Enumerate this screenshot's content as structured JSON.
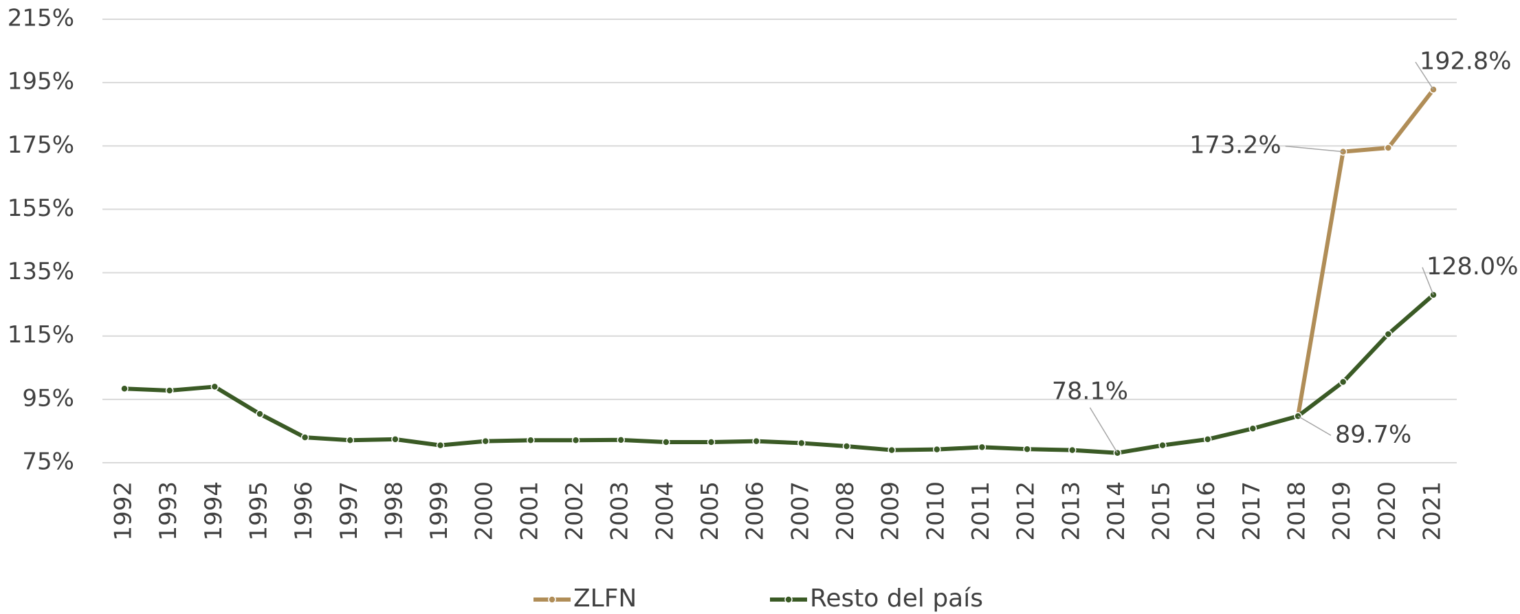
{
  "chart_data": {
    "type": "line",
    "categories": [
      "1992",
      "1993",
      "1994",
      "1995",
      "1996",
      "1997",
      "1998",
      "1999",
      "2000",
      "2001",
      "2002",
      "2003",
      "2004",
      "2005",
      "2006",
      "2007",
      "2008",
      "2009",
      "2010",
      "2011",
      "2012",
      "2013",
      "2014",
      "2015",
      "2016",
      "2017",
      "2018",
      "2019",
      "2020",
      "2021"
    ],
    "series": [
      {
        "name": "ZLFN",
        "color": "#b08d57",
        "values": [
          null,
          null,
          null,
          null,
          null,
          null,
          null,
          null,
          null,
          null,
          null,
          null,
          null,
          null,
          null,
          null,
          null,
          null,
          null,
          null,
          null,
          null,
          null,
          null,
          null,
          null,
          89.7,
          173.2,
          174.4,
          192.8
        ],
        "value_labels": [
          null,
          null,
          null,
          null,
          null,
          null,
          null,
          null,
          null,
          null,
          null,
          null,
          null,
          null,
          null,
          null,
          null,
          null,
          null,
          null,
          null,
          null,
          null,
          null,
          null,
          null,
          null,
          "173.2%",
          null,
          "192.8%"
        ]
      },
      {
        "name": "Resto del país",
        "color": "#3a5a25",
        "values": [
          98.4,
          97.8,
          99.0,
          90.4,
          83.0,
          82.1,
          82.4,
          80.5,
          81.8,
          82.1,
          82.1,
          82.2,
          81.5,
          81.5,
          81.8,
          81.2,
          80.2,
          79.0,
          79.2,
          79.9,
          79.3,
          79.0,
          78.1,
          80.5,
          82.4,
          85.8,
          89.7,
          100.5,
          115.6,
          128.0
        ],
        "value_labels": [
          null,
          null,
          null,
          null,
          null,
          null,
          null,
          null,
          null,
          null,
          null,
          null,
          null,
          null,
          null,
          null,
          null,
          null,
          null,
          null,
          null,
          null,
          "78.1%",
          null,
          null,
          null,
          "89.7%",
          null,
          null,
          "128.0%"
        ]
      }
    ],
    "ylim": [
      75,
      215
    ],
    "yticks": [
      {
        "value": 75,
        "label": "75%"
      },
      {
        "value": 95,
        "label": "95%"
      },
      {
        "value": 115,
        "label": "115%"
      },
      {
        "value": 135,
        "label": "135%"
      },
      {
        "value": 155,
        "label": "155%"
      },
      {
        "value": 175,
        "label": "175%"
      },
      {
        "value": 195,
        "label": "195%"
      },
      {
        "value": 215,
        "label": "215%"
      }
    ],
    "grid": true,
    "legend": "bottom"
  }
}
